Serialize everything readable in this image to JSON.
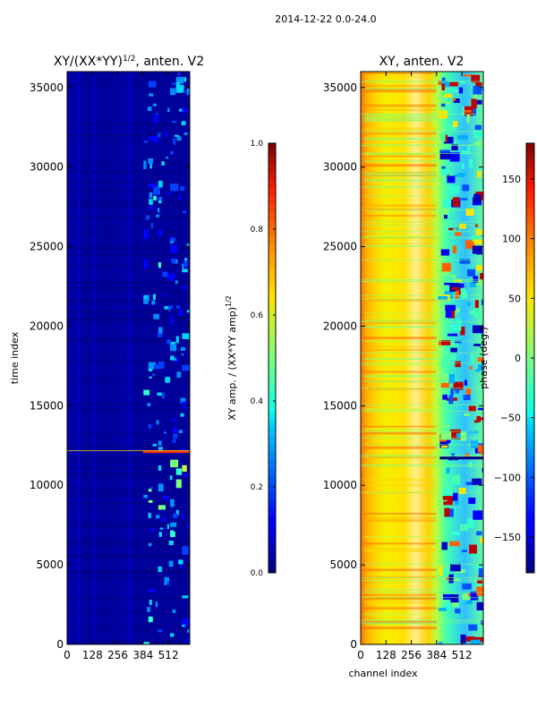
{
  "suptitle": "2014-12-22 0.0-24.0",
  "chart_data": [
    {
      "type": "heatmap",
      "title_prefix": "XY/(XX*YY)",
      "title_exponent": "1/2",
      "title_suffix": ", anten. V2",
      "xlabel": "",
      "ylabel": "time index",
      "x_ticks": [
        0,
        128,
        256,
        384,
        512
      ],
      "y_ticks": [
        0,
        5000,
        10000,
        15000,
        20000,
        25000,
        30000,
        35000
      ],
      "xlim": [
        0,
        620
      ],
      "ylim": [
        0,
        36000
      ],
      "colormap": "jet",
      "colorbar": {
        "label_prefix": "XY amp. / (XX*YY amp)",
        "label_exponent": "1/2",
        "ticks": [
          "0.0",
          "0.2",
          "0.4",
          "0.6",
          "0.8",
          "1.0"
        ],
        "range": [
          0.0,
          1.0
        ]
      }
    },
    {
      "type": "heatmap",
      "title": "XY, anten. V2",
      "xlabel": "channel index",
      "ylabel": "",
      "x_ticks": [
        0,
        128,
        256,
        384,
        512
      ],
      "y_ticks": [
        0,
        5000,
        10000,
        15000,
        20000,
        25000,
        30000,
        35000
      ],
      "xlim": [
        0,
        620
      ],
      "ylim": [
        0,
        36000
      ],
      "colormap": "jet",
      "colorbar": {
        "label": "phase (deg.)",
        "ticks": [
          "−150",
          "−100",
          "−50",
          "0",
          "50",
          "100",
          "150"
        ],
        "tick_values": [
          -150,
          -100,
          -50,
          0,
          50,
          100,
          150
        ],
        "range": [
          -180,
          180
        ]
      }
    }
  ]
}
